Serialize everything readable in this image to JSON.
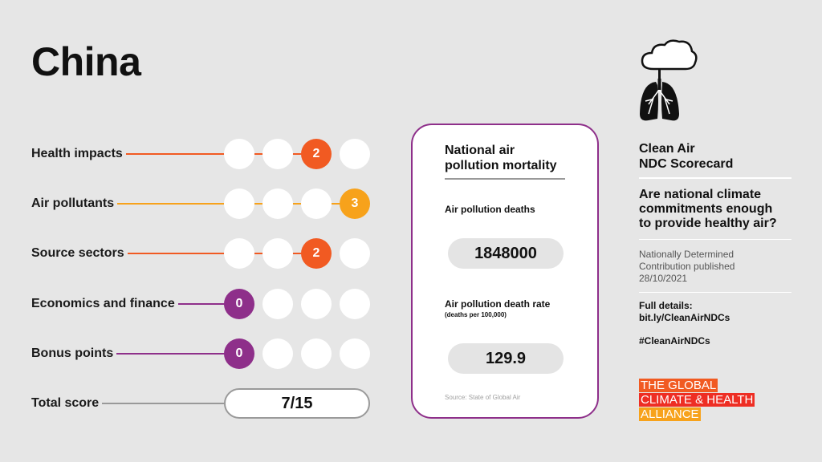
{
  "country": "China",
  "colors": {
    "orange": "#f15a22",
    "amber": "#f7a21b",
    "purple": "#8e2f8a",
    "red": "#ee2e24"
  },
  "rows": [
    {
      "label": "Health impacts",
      "score": 2,
      "color": "#f15a22"
    },
    {
      "label": "Air pollutants",
      "score": 3,
      "color": "#f7a21b"
    },
    {
      "label": "Source sectors",
      "score": 2,
      "color": "#f15a22"
    },
    {
      "label": "Economics and finance",
      "score": 0,
      "color": "#8e2f8a"
    },
    {
      "label": "Bonus points",
      "score": 0,
      "color": "#8e2f8a"
    }
  ],
  "total": {
    "label": "Total score",
    "value": "7/15"
  },
  "card": {
    "title": "National air pollution mortality",
    "deaths_label": "Air pollution deaths",
    "deaths": "1848000",
    "rate_label": "Air pollution death rate",
    "rate_unit": "(deaths per 100,000)",
    "rate": "129.9",
    "source": "Source: State of Global Air"
  },
  "side": {
    "icon": "cloud-lungs-icon",
    "heading1": "Clean Air",
    "heading2": "NDC Scorecard",
    "question": "Are national climate commitments enough to provide healthy air?",
    "ndc1": "Nationally Determined",
    "ndc2": "Contribution published",
    "ndc_date": "28/10/2021",
    "details_label": "Full details:",
    "details_link": "bit.ly/CleanAirNDCs",
    "hashtag": "#CleanAirNDCs",
    "logo": [
      "THE GLOBAL",
      "CLIMATE & HEALTH",
      "ALLIANCE"
    ]
  }
}
